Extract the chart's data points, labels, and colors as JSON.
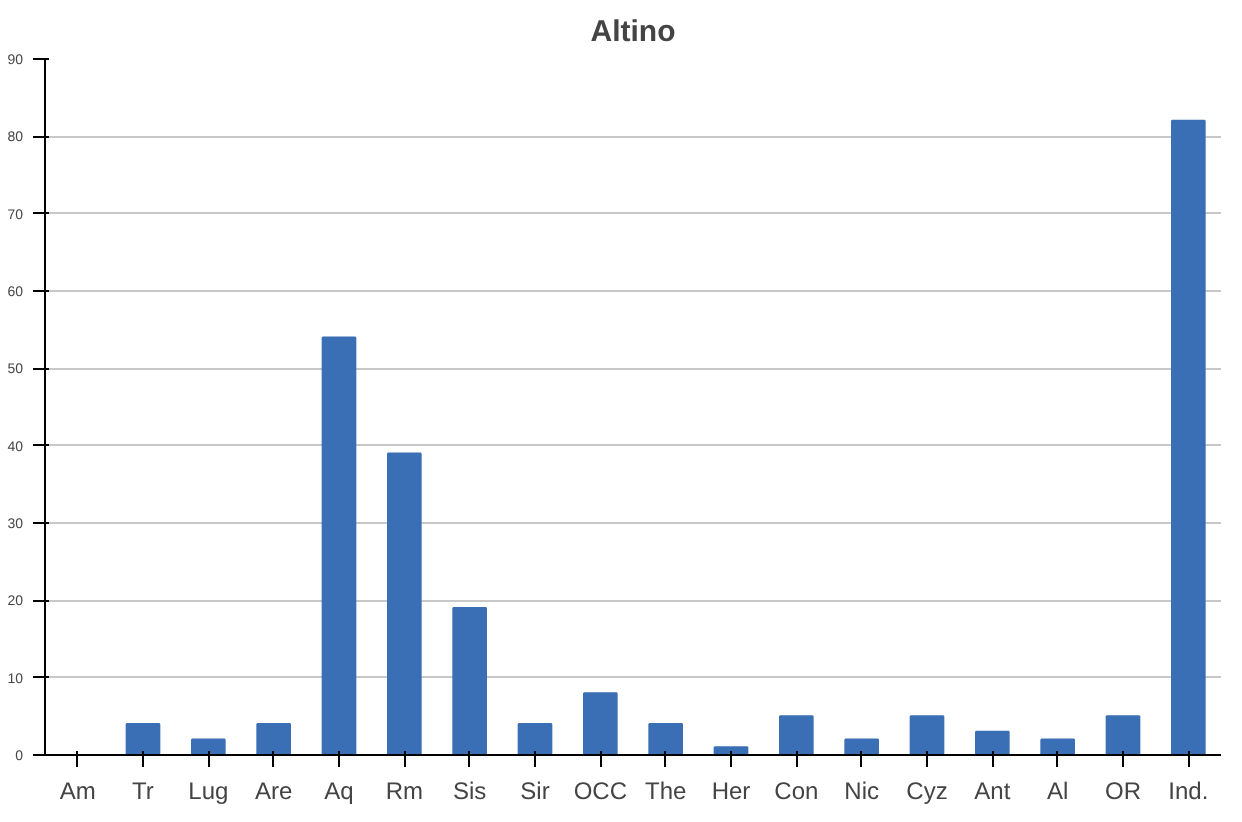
{
  "chart_data": {
    "type": "bar",
    "title": "Altino",
    "categories": [
      "Am",
      "Tr",
      "Lug",
      "Are",
      "Aq",
      "Rm",
      "Sis",
      "Sir",
      "OCC",
      "The",
      "Her",
      "Con",
      "Nic",
      "Cyz",
      "Ant",
      "Al",
      "OR",
      "Ind."
    ],
    "values": [
      0,
      4,
      2,
      4,
      54,
      39,
      19,
      4,
      8,
      4,
      1,
      5,
      2,
      5,
      3,
      2,
      5,
      82
    ],
    "color": "#3a6fb5",
    "ylim": [
      0,
      90
    ],
    "yticks": [
      0,
      10,
      20,
      30,
      40,
      50,
      60,
      70,
      80,
      90
    ],
    "grid": "y"
  }
}
